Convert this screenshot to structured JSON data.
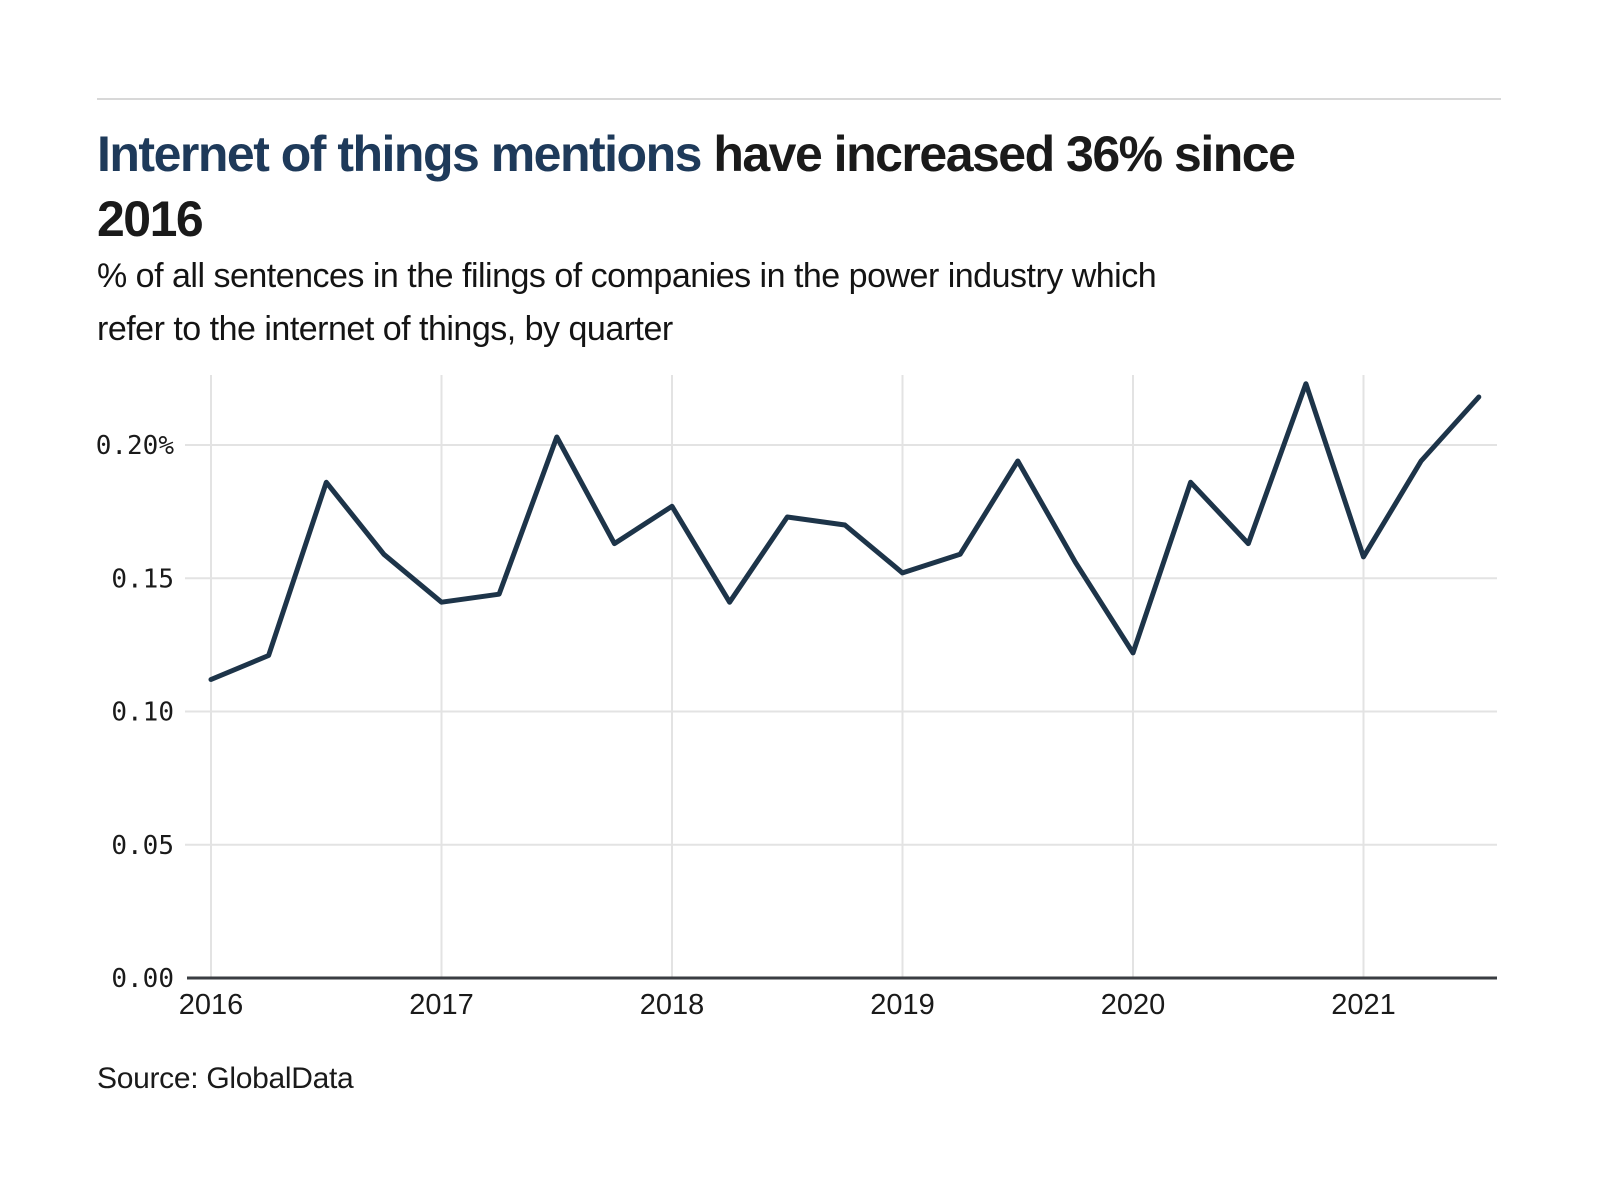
{
  "header": {
    "title": {
      "highlight": "Internet of things mentions",
      "rest_line1": " have increased 36% since",
      "line2": "2016",
      "highlight_color": "#1e3a5a",
      "text_color": "#1a1a1a"
    },
    "subtitle_line1": "% of all sentences in the filings of companies in the power industry which",
    "subtitle_line2": "refer to the internet of things, by quarter"
  },
  "footer": {
    "source": "Source: GlobalData"
  },
  "chart_data": {
    "type": "line",
    "title": "Internet of things mentions have increased 36% since 2016",
    "subtitle": "% of all sentences in the filings of companies in the power industry which refer to the internet of things, by quarter",
    "unit": "% of all sentences",
    "x": [
      "2016 Q1",
      "2016 Q2",
      "2016 Q3",
      "2016 Q4",
      "2017 Q1",
      "2017 Q2",
      "2017 Q3",
      "2017 Q4",
      "2018 Q1",
      "2018 Q2",
      "2018 Q3",
      "2018 Q4",
      "2019 Q1",
      "2019 Q2",
      "2019 Q3",
      "2019 Q4",
      "2020 Q1",
      "2020 Q2",
      "2020 Q3",
      "2020 Q4",
      "2021 Q1",
      "2021 Q2",
      "2021 Q3"
    ],
    "series": [
      {
        "name": "Internet of things mentions (% of sentences)",
        "values": [
          0.112,
          0.121,
          0.186,
          0.159,
          0.141,
          0.144,
          0.203,
          0.163,
          0.177,
          0.141,
          0.173,
          0.17,
          0.152,
          0.159,
          0.194,
          0.156,
          0.122,
          0.186,
          0.163,
          0.223,
          0.158,
          0.194,
          0.218
        ]
      }
    ],
    "x_axis": {
      "tick_labels": [
        "2016",
        "2017",
        "2018",
        "2019",
        "2020",
        "2021"
      ],
      "tick_quarter_index": [
        0,
        4,
        8,
        12,
        16,
        20
      ]
    },
    "y_axis": {
      "tick_labels": [
        "0.20%",
        "0.15",
        "0.10",
        "0.05",
        "0.00"
      ],
      "tick_values": [
        0.2,
        0.15,
        0.1,
        0.05,
        0.0
      ],
      "range": [
        0,
        0.226
      ]
    },
    "grid": true,
    "legend_position": "none",
    "line_color": "#1d3449",
    "gridline_color": "#e3e3e3",
    "axis_color": "#3a3d42",
    "source": "Source: GlobalData"
  }
}
